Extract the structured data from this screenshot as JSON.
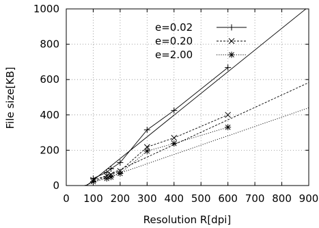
{
  "chart_data": {
    "type": "line",
    "title": "",
    "xlabel": "Resolution R[dpi]",
    "ylabel": "File size[KB]",
    "xlim": [
      0,
      900
    ],
    "ylim": [
      0,
      1000
    ],
    "xticks": [
      0,
      100,
      200,
      300,
      400,
      500,
      600,
      700,
      800,
      900
    ],
    "yticks": [
      0,
      200,
      400,
      600,
      800,
      1000
    ],
    "grid": true,
    "legend_position": "top-center",
    "series": [
      {
        "name": "e=0.02",
        "marker": "plus",
        "line_style": "solid",
        "x": [
          100,
          150,
          166,
          200,
          300,
          400,
          600
        ],
        "y": [
          40,
          75,
          95,
          130,
          315,
          425,
          668
        ],
        "fit_line": {
          "x": [
            0,
            900
          ],
          "y": [
            -93,
            1013
          ]
        }
      },
      {
        "name": "e=0.20",
        "marker": "cross",
        "line_style": "dashed",
        "x": [
          100,
          150,
          166,
          200,
          300,
          400,
          600
        ],
        "y": [
          32,
          55,
          62,
          82,
          218,
          270,
          400
        ],
        "fit_line": {
          "x": [
            0,
            900
          ],
          "y": [
            -50,
            583
          ]
        }
      },
      {
        "name": "e=2.00",
        "marker": "star",
        "line_style": "dotted",
        "x": [
          100,
          150,
          166,
          200,
          300,
          400,
          600
        ],
        "y": [
          22,
          40,
          48,
          68,
          195,
          238,
          330
        ],
        "fit_line": {
          "x": [
            0,
            900
          ],
          "y": [
            -35,
            440
          ]
        }
      }
    ]
  }
}
